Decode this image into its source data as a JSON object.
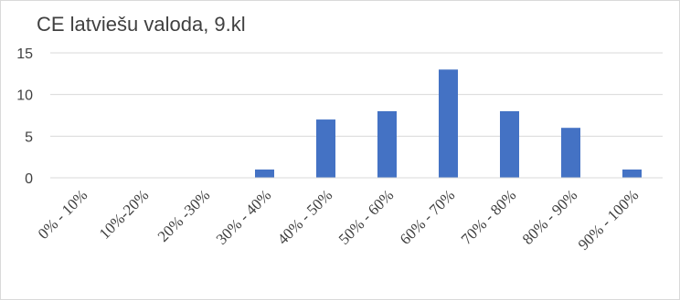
{
  "chart_data": {
    "type": "bar",
    "title": "CE latviešu valoda, 9.kl",
    "categories": [
      "0% - 10%",
      "10%-20%",
      "20% -30%",
      "30% - 40%",
      "40% - 50%",
      "50% - 60%",
      "60% - 70%",
      "70% - 80%",
      "80% - 90%",
      "90% - 100%"
    ],
    "values": [
      0,
      0,
      0,
      1,
      7,
      8,
      13,
      8,
      6,
      1
    ],
    "xlabel": "",
    "ylabel": "",
    "ylim": [
      0,
      15
    ],
    "yticks": [
      0,
      5,
      10,
      15
    ],
    "grid": true,
    "bar_color": "#4472c4",
    "grid_color": "#d9d9d9"
  }
}
